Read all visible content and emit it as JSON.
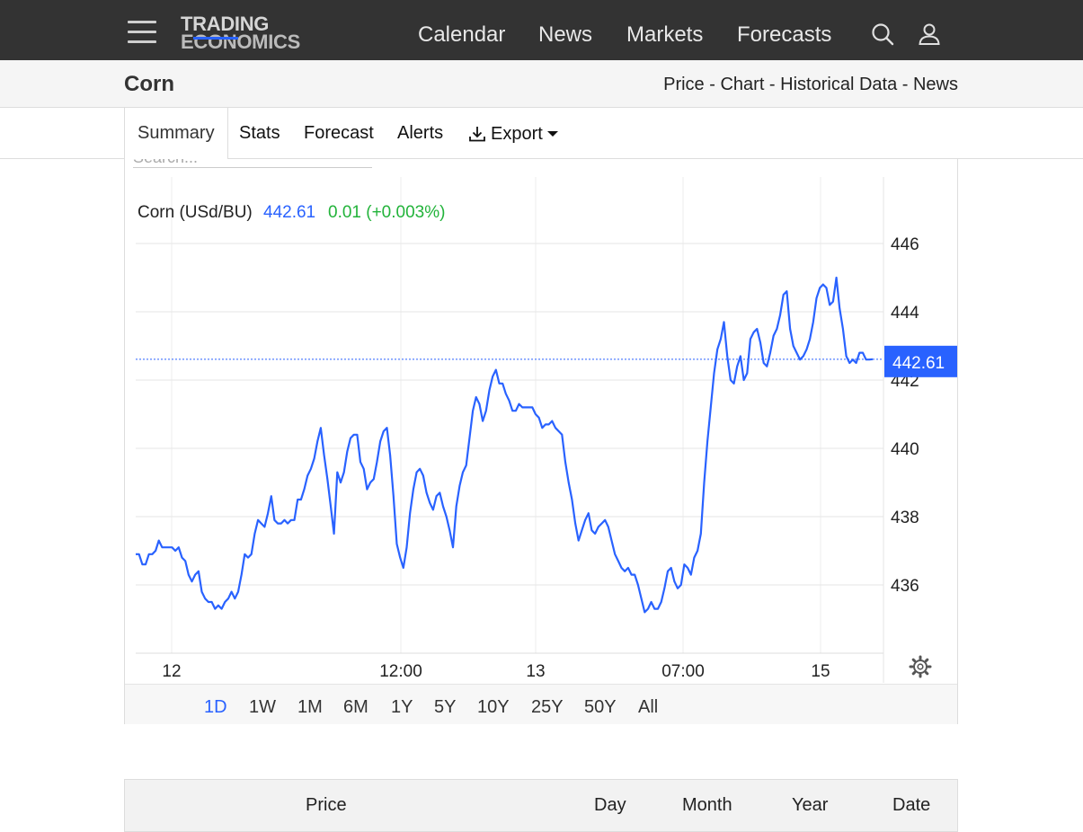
{
  "brand": {
    "line1": "TRADING",
    "line2": "ECONOMICS"
  },
  "nav": {
    "calendar": "Calendar",
    "news": "News",
    "markets": "Markets",
    "forecasts": "Forecasts"
  },
  "page": {
    "title": "Corn"
  },
  "crumbs": [
    "Price",
    "Chart",
    "Historical Data",
    "News"
  ],
  "tabs": {
    "summary": "Summary",
    "stats": "Stats",
    "forecast": "Forecast",
    "alerts": "Alerts",
    "export": "Export"
  },
  "search": {
    "placeholder": "Search..."
  },
  "legend": {
    "name": "Corn (USd/BU)",
    "last": "442.61",
    "change": "0.01 (+0.003%)"
  },
  "ranges": [
    "1D",
    "1W",
    "1M",
    "6M",
    "1Y",
    "5Y",
    "10Y",
    "25Y",
    "50Y",
    "All"
  ],
  "selected_range": "1D",
  "table": {
    "price": "Price",
    "day": "Day",
    "month": "Month",
    "year": "Year",
    "date": "Date"
  },
  "colors": {
    "topbar": "#333333",
    "series": "#2962ff",
    "up": "#22b33a"
  },
  "chart_data": {
    "type": "line",
    "title": "",
    "ylabel": "",
    "ylim": [
      434,
      448
    ],
    "yticks": [
      436,
      438,
      440,
      442,
      444,
      446
    ],
    "xtick_labels": [
      "12",
      "12:00",
      "13",
      "07:00",
      "15"
    ],
    "last_value": 442.61,
    "series": [
      {
        "name": "Corn (USd/BU)",
        "values": [
          436.9,
          436.9,
          436.6,
          436.6,
          436.9,
          436.9,
          437.0,
          437.3,
          437.1,
          437.1,
          437.1,
          437.1,
          437.0,
          437.1,
          436.8,
          436.7,
          436.3,
          436.1,
          436.3,
          436.4,
          435.8,
          435.6,
          435.5,
          435.5,
          435.3,
          435.4,
          435.3,
          435.5,
          435.6,
          435.8,
          435.6,
          435.8,
          436.3,
          436.9,
          436.8,
          436.9,
          437.5,
          437.9,
          437.8,
          437.7,
          438.1,
          438.6,
          437.9,
          437.8,
          437.8,
          437.9,
          437.8,
          437.9,
          437.9,
          438.5,
          438.5,
          438.8,
          439.2,
          439.4,
          439.7,
          440.2,
          440.6,
          439.8,
          439.1,
          438.3,
          437.5,
          439.3,
          439.0,
          439.3,
          439.9,
          440.3,
          440.4,
          440.4,
          439.6,
          439.4,
          438.8,
          439.0,
          439.1,
          439.6,
          440.2,
          440.5,
          440.6,
          439.8,
          438.6,
          437.2,
          436.8,
          436.5,
          437.1,
          438.1,
          438.8,
          439.3,
          439.4,
          439.2,
          438.7,
          438.4,
          438.2,
          438.6,
          438.7,
          438.3,
          438.0,
          437.6,
          437.1,
          438.3,
          438.9,
          439.3,
          439.5,
          440.3,
          441.1,
          441.5,
          441.3,
          440.8,
          441.1,
          441.7,
          442.1,
          442.3,
          441.9,
          441.9,
          441.6,
          441.4,
          441.1,
          441.1,
          441.3,
          441.2,
          441.2,
          441.2,
          441.2,
          441.0,
          440.9,
          440.6,
          440.7,
          440.7,
          440.8,
          440.6,
          440.5,
          440.4,
          439.6,
          439.0,
          438.5,
          437.8,
          437.3,
          437.6,
          437.9,
          438.1,
          437.6,
          437.5,
          437.7,
          437.8,
          437.9,
          437.7,
          437.3,
          436.9,
          436.7,
          436.5,
          436.4,
          436.5,
          436.3,
          436.3,
          436.0,
          435.6,
          435.2,
          435.3,
          435.5,
          435.3,
          435.3,
          435.5,
          435.9,
          436.4,
          436.5,
          436.1,
          435.9,
          436.0,
          436.6,
          436.5,
          436.3,
          436.8,
          437.0,
          437.5,
          439.0,
          440.2,
          441.2,
          442.2,
          442.9,
          443.2,
          443.7,
          442.7,
          442.0,
          441.9,
          442.4,
          442.7,
          442.0,
          442.2,
          443.2,
          443.4,
          443.5,
          443.1,
          442.5,
          442.4,
          442.8,
          443.3,
          443.5,
          443.9,
          444.5,
          444.6,
          443.5,
          443.0,
          442.8,
          442.6,
          442.7,
          442.9,
          443.2,
          443.7,
          444.4,
          444.7,
          444.8,
          444.7,
          444.2,
          444.3,
          445.0,
          444.1,
          443.5,
          442.7,
          442.5,
          442.6,
          442.5,
          442.8,
          442.8,
          442.6,
          442.6,
          442.61
        ]
      }
    ]
  }
}
